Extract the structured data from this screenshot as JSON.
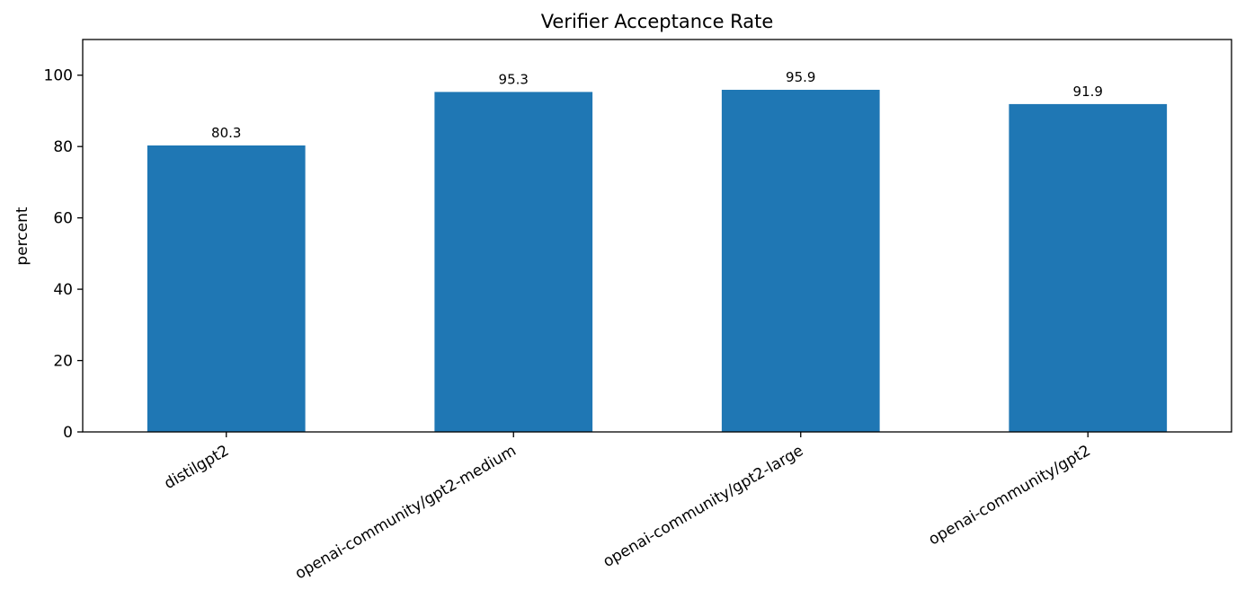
{
  "chart_data": {
    "type": "bar",
    "title": "Verifier Acceptance Rate",
    "xlabel": "",
    "ylabel": "percent",
    "categories": [
      "distilgpt2",
      "openai-community/gpt2-medium",
      "openai-community/gpt2-large",
      "openai-community/gpt2"
    ],
    "values": [
      80.3,
      95.3,
      95.9,
      91.9
    ],
    "value_labels": [
      "80.3",
      "95.3",
      "95.9",
      "91.9"
    ],
    "ylim": [
      0,
      110
    ],
    "yticks": [
      0,
      20,
      40,
      60,
      80,
      100
    ],
    "grid": false,
    "legend": "none",
    "bar_color": "#1f77b4"
  }
}
